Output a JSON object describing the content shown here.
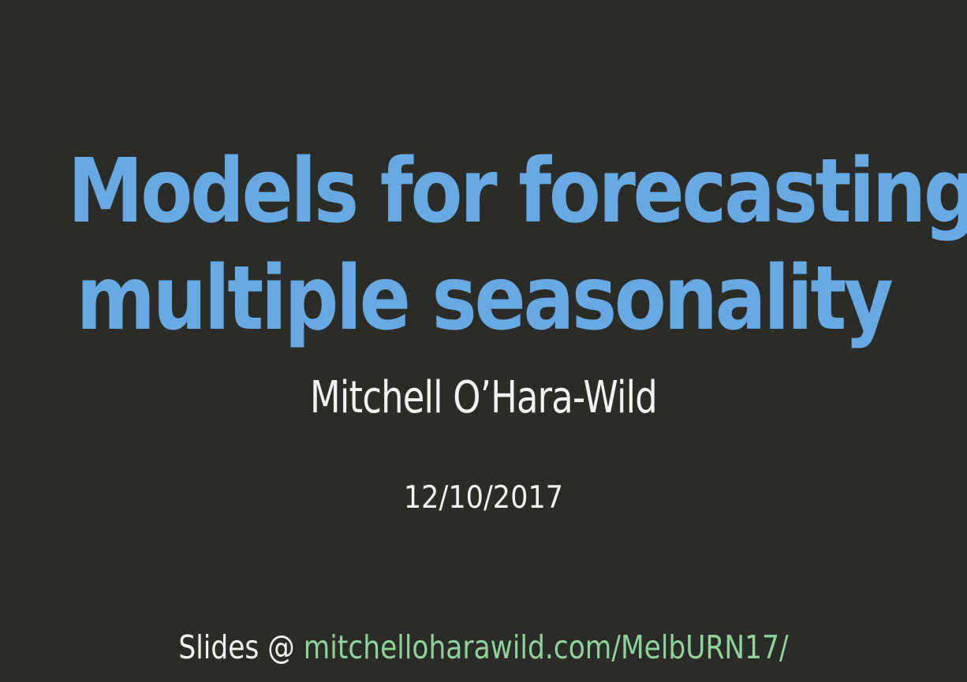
{
  "slide": {
    "title_line_1": "Models for forecasting",
    "title_line_2": "multiple seasonality",
    "author": "Mitchell O’Hara-Wild",
    "date": "12/10/2017",
    "footer_label": "Slides @",
    "footer_link": "mitchelloharawild.com/MelbURN17/"
  },
  "colors": {
    "background": "#2b2b27",
    "title": "#66a9e3",
    "text": "#f2f2f2",
    "link": "#8fd39a"
  }
}
